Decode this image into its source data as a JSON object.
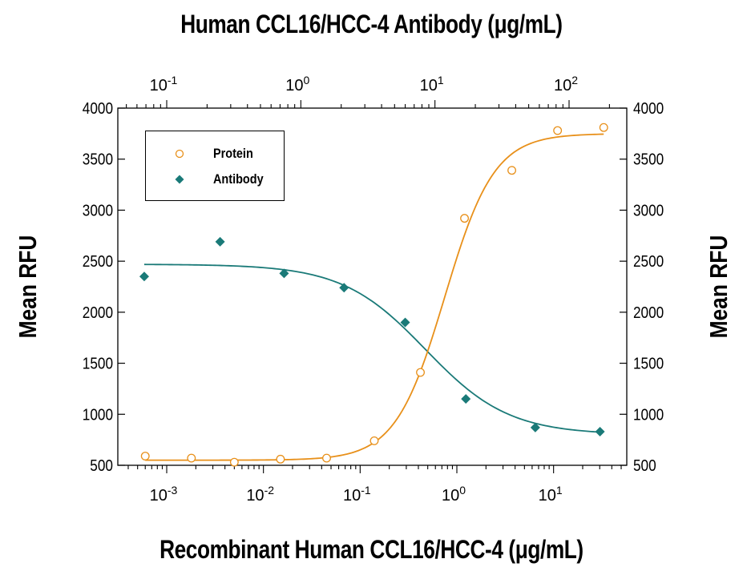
{
  "chart_data": {
    "type": "scatter",
    "title_top": "Human CCL16/HCC-4 Antibody (μg/mL)",
    "xlabel": "Recombinant Human CCL16/HCC-4 (μg/mL)",
    "ylabel_left": "Mean RFU",
    "ylabel_right": "Mean RFU",
    "ylim": [
      500,
      4000
    ],
    "y_ticks": [
      "500",
      "1000",
      "1500",
      "2000",
      "2500",
      "3000",
      "3500",
      "4000"
    ],
    "x_bottom_scale": "log",
    "x_bottom_lim": [
      0.0004,
      60
    ],
    "x_bottom_ticks": [
      {
        "base": "10",
        "exp": "-3"
      },
      {
        "base": "10",
        "exp": "-2"
      },
      {
        "base": "10",
        "exp": "-1"
      },
      {
        "base": "10",
        "exp": "0"
      },
      {
        "base": "10",
        "exp": "1"
      }
    ],
    "x_top_scale": "log",
    "x_top_ticks": [
      {
        "base": "10",
        "exp": "-1"
      },
      {
        "base": "10",
        "exp": "0"
      },
      {
        "base": "10",
        "exp": "1"
      },
      {
        "base": "10",
        "exp": "2"
      }
    ],
    "legend_position": "top-left",
    "series": [
      {
        "name": "Protein",
        "axis": "bottom",
        "marker": "open-circle",
        "color": "#E8901A",
        "x": [
          0.0006,
          0.0018,
          0.005,
          0.015,
          0.045,
          0.14,
          0.42,
          1.2,
          3.7,
          11,
          33
        ],
        "y": [
          590,
          570,
          530,
          560,
          570,
          740,
          1410,
          2920,
          3390,
          3780,
          3810
        ],
        "fit": {
          "bottom": 550,
          "top": 3750,
          "ec50": 0.75,
          "hill": 1.7
        }
      },
      {
        "name": "Antibody",
        "axis": "top",
        "marker": "filled-diamond",
        "color": "#1A7A78",
        "x": [
          0.068,
          0.25,
          0.75,
          2.1,
          6.0,
          17,
          56,
          170
        ],
        "y": [
          2350,
          2690,
          2380,
          2240,
          1900,
          1150,
          870,
          830
        ],
        "fit": {
          "bottom": 800,
          "top": 2470,
          "ec50": 8.5,
          "hill": 1.4
        }
      }
    ]
  }
}
